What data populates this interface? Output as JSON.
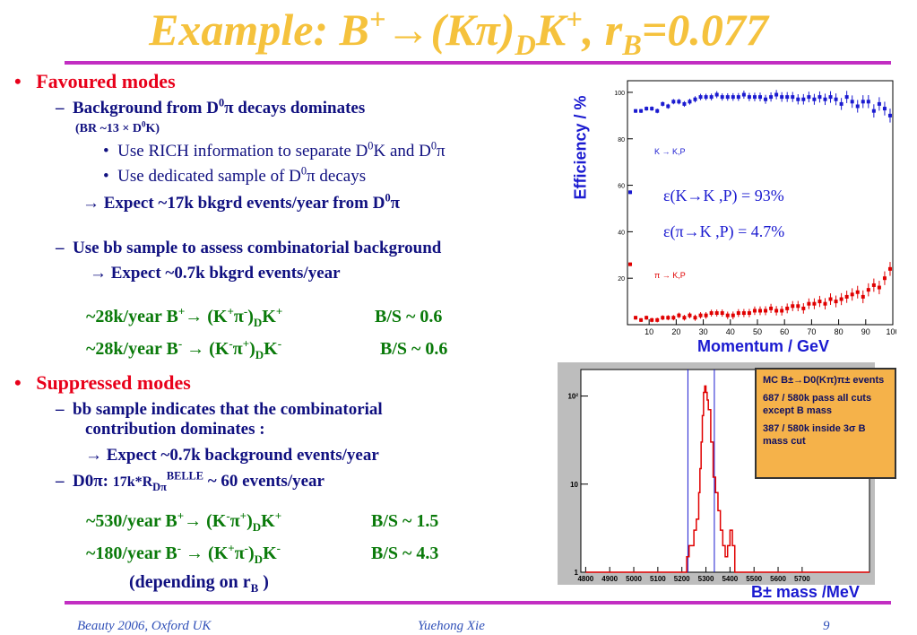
{
  "title": {
    "prefix": "Example: B",
    "sup1": "+",
    "arrow": "→(Kπ)",
    "sub1": "D",
    "k": "K",
    "sup2": "+",
    "rb": ", r",
    "sub2": "B",
    "value": "=0.077"
  },
  "favoured": {
    "heading": "Favoured modes",
    "bg_line": {
      "pre": "Background from D",
      "sup": "0",
      "post": "π decays dominates"
    },
    "br_line": {
      "pre": "(BR ~13 × D",
      "sup": "0",
      "post": "K)"
    },
    "rich_line": {
      "pre": "Use RICH information to separate D",
      "sup1": "0",
      "mid": "K and D",
      "sup2": "0",
      "post": "π"
    },
    "dedicated_line": {
      "pre": "Use dedicated sample of D",
      "sup": "0",
      "post": "π decays"
    },
    "expect1": {
      "pre": "→ Expect ~17k bkgrd events/year from D",
      "sup": "0",
      "post": "π"
    },
    "bb_line": "Use bb sample to assess combinatorial background",
    "expect2": "→ Expect ~0.7k bkgrd events/year",
    "yield1": {
      "a": "~28k/year B",
      "a_sup": "+",
      "b": "→ (K",
      "b_sup": "+",
      "c": "π",
      "c_sup": "-",
      "d": ")",
      "d_sub": "D",
      "e": "K",
      "e_sup": "+",
      "bs": "B/S ~ 0.6"
    },
    "yield2": {
      "a": "~28k/year B",
      "a_sup": "-",
      "b": " → (K",
      "b_sup": "-",
      "c": "π",
      "c_sup": "+",
      "d": ")",
      "d_sub": "D",
      "e": "K",
      "e_sup": "-",
      "bs": "B/S ~ 0.6"
    }
  },
  "suppressed": {
    "heading": "Suppressed modes",
    "bb_line1": "bb sample indicates that the combinatorial",
    "bb_line2": "contribution dominates :",
    "expect": "→ Expect ~0.7k background events/year",
    "d0": {
      "pre": "D0π:  ",
      "small": "17k*R",
      "sub": "Dπ",
      "sup": "BELLE",
      "post": " ~ 60 events/year"
    },
    "yield1": {
      "a": "~530/year B",
      "a_sup": "+",
      "b": "→ (K",
      "b_sup": "-",
      "c": "π",
      "c_sup": "+",
      "d": ")",
      "d_sub": "D",
      "e": "K",
      "e_sup": "+",
      "bs": "B/S ~ 1.5"
    },
    "yield2": {
      "a": "~180/year B",
      "a_sup": "-",
      "b": " → (K",
      "b_sup": "+",
      "c": "π",
      "c_sup": "-",
      "d": ")",
      "d_sub": "D",
      "e": "K",
      "e_sup": "-",
      "bs": "B/S ~ 4.3"
    },
    "depending": {
      "pre": "(depending on r",
      "sub": "B",
      "post": " )"
    }
  },
  "footer": {
    "left": "Beauty 2006, Oxford UK",
    "center": "Yuehong Xie",
    "page": "9"
  },
  "infobox": {
    "line1": "MC B±→D0(Kπ)π± events",
    "line2": "687 / 580k pass all cuts except B mass",
    "line3": "387 / 580k inside 3σ B mass cut"
  },
  "chart_data": [
    {
      "type": "scatter",
      "ylabel": "Efficiency / %",
      "xlabel": "Momentum / GeV",
      "xlim": [
        2,
        100
      ],
      "ylim": [
        0,
        105
      ],
      "x_ticks": [
        "10",
        "20",
        "30",
        "40",
        "50",
        "60",
        "70",
        "80",
        "90",
        "100"
      ],
      "y_ticks": [
        "20",
        "40",
        "60",
        "80",
        "100"
      ],
      "annotations": [
        "ε(K→K ,P) = 93%",
        "ε(π→K ,P) = 4.7%"
      ],
      "legend": [
        "K → K,P",
        "π → K,P"
      ],
      "colors": {
        "kaon": "#1a1ad0",
        "pion": "#e00000"
      },
      "series": [
        {
          "name": "K → K,P",
          "x": [
            3,
            5,
            7,
            9,
            11,
            13,
            15,
            17,
            19,
            21,
            23,
            25,
            27,
            29,
            31,
            33,
            35,
            37,
            39,
            41,
            43,
            45,
            47,
            49,
            51,
            53,
            55,
            57,
            59,
            61,
            63,
            65,
            67,
            69,
            71,
            73,
            75,
            77,
            79,
            81,
            83,
            85,
            87,
            89,
            91,
            93,
            95,
            97,
            99
          ],
          "y": [
            57,
            92,
            92,
            93,
            93,
            92,
            95,
            94,
            96,
            96,
            95,
            96,
            97,
            98,
            98,
            98,
            99,
            98,
            98,
            98,
            98,
            99,
            98,
            98,
            98,
            97,
            98,
            99,
            98,
            98,
            98,
            97,
            97,
            98,
            97,
            98,
            97,
            98,
            97,
            95,
            98,
            96,
            94,
            96,
            96,
            92,
            95,
            93,
            90
          ]
        },
        {
          "name": "π → K,P",
          "x": [
            3,
            5,
            7,
            9,
            11,
            13,
            15,
            17,
            19,
            21,
            23,
            25,
            27,
            29,
            31,
            33,
            35,
            37,
            39,
            41,
            43,
            45,
            47,
            49,
            51,
            53,
            55,
            57,
            59,
            61,
            63,
            65,
            67,
            69,
            71,
            73,
            75,
            77,
            79,
            81,
            83,
            85,
            87,
            89,
            91,
            93,
            95,
            97,
            99
          ],
          "y": [
            26,
            3,
            2,
            3,
            2,
            2,
            3,
            3,
            3,
            4,
            3,
            4,
            3,
            4,
            4,
            5,
            5,
            5,
            4,
            4,
            5,
            5,
            5,
            6,
            6,
            6,
            7,
            6,
            6,
            7,
            8,
            8,
            7,
            9,
            9,
            10,
            9,
            11,
            10,
            11,
            12,
            13,
            14,
            12,
            15,
            17,
            16,
            20,
            24
          ]
        }
      ]
    },
    {
      "type": "line",
      "xlabel": "B± mass /MeV",
      "xlim": [
        4780,
        5980
      ],
      "ylim": [
        1,
        200
      ],
      "log_y": true,
      "x_ticks": [
        "4800",
        "4900",
        "5000",
        "5100",
        "5200",
        "5300",
        "5400",
        "5500",
        "5600",
        "5700"
      ],
      "y_ticks": [
        "1",
        "10",
        "10²"
      ],
      "vertical_lines": [
        5225,
        5335
      ],
      "colors": {
        "hist": "#e00000",
        "cut": "#1a1ad0"
      },
      "series": [
        {
          "name": "",
          "x": [
            4800,
            4810,
            4820,
            5000,
            5100,
            5150,
            5200,
            5215,
            5220,
            5230,
            5240,
            5250,
            5260,
            5270,
            5275,
            5280,
            5285,
            5290,
            5295,
            5300,
            5305,
            5310,
            5320,
            5330,
            5340,
            5350,
            5360,
            5370,
            5380,
            5390,
            5400,
            5410,
            5420,
            5430,
            5440,
            5460,
            5480,
            5500,
            5700,
            5900
          ],
          "y": [
            1,
            1,
            1,
            1,
            1,
            1,
            1,
            1,
            1.5,
            2,
            2,
            3,
            4,
            8,
            15,
            30,
            60,
            110,
            130,
            110,
            90,
            70,
            30,
            12,
            8,
            5,
            3,
            2,
            1.5,
            2,
            3,
            2,
            1,
            1,
            1,
            1,
            1,
            1,
            1,
            1
          ]
        }
      ]
    }
  ]
}
